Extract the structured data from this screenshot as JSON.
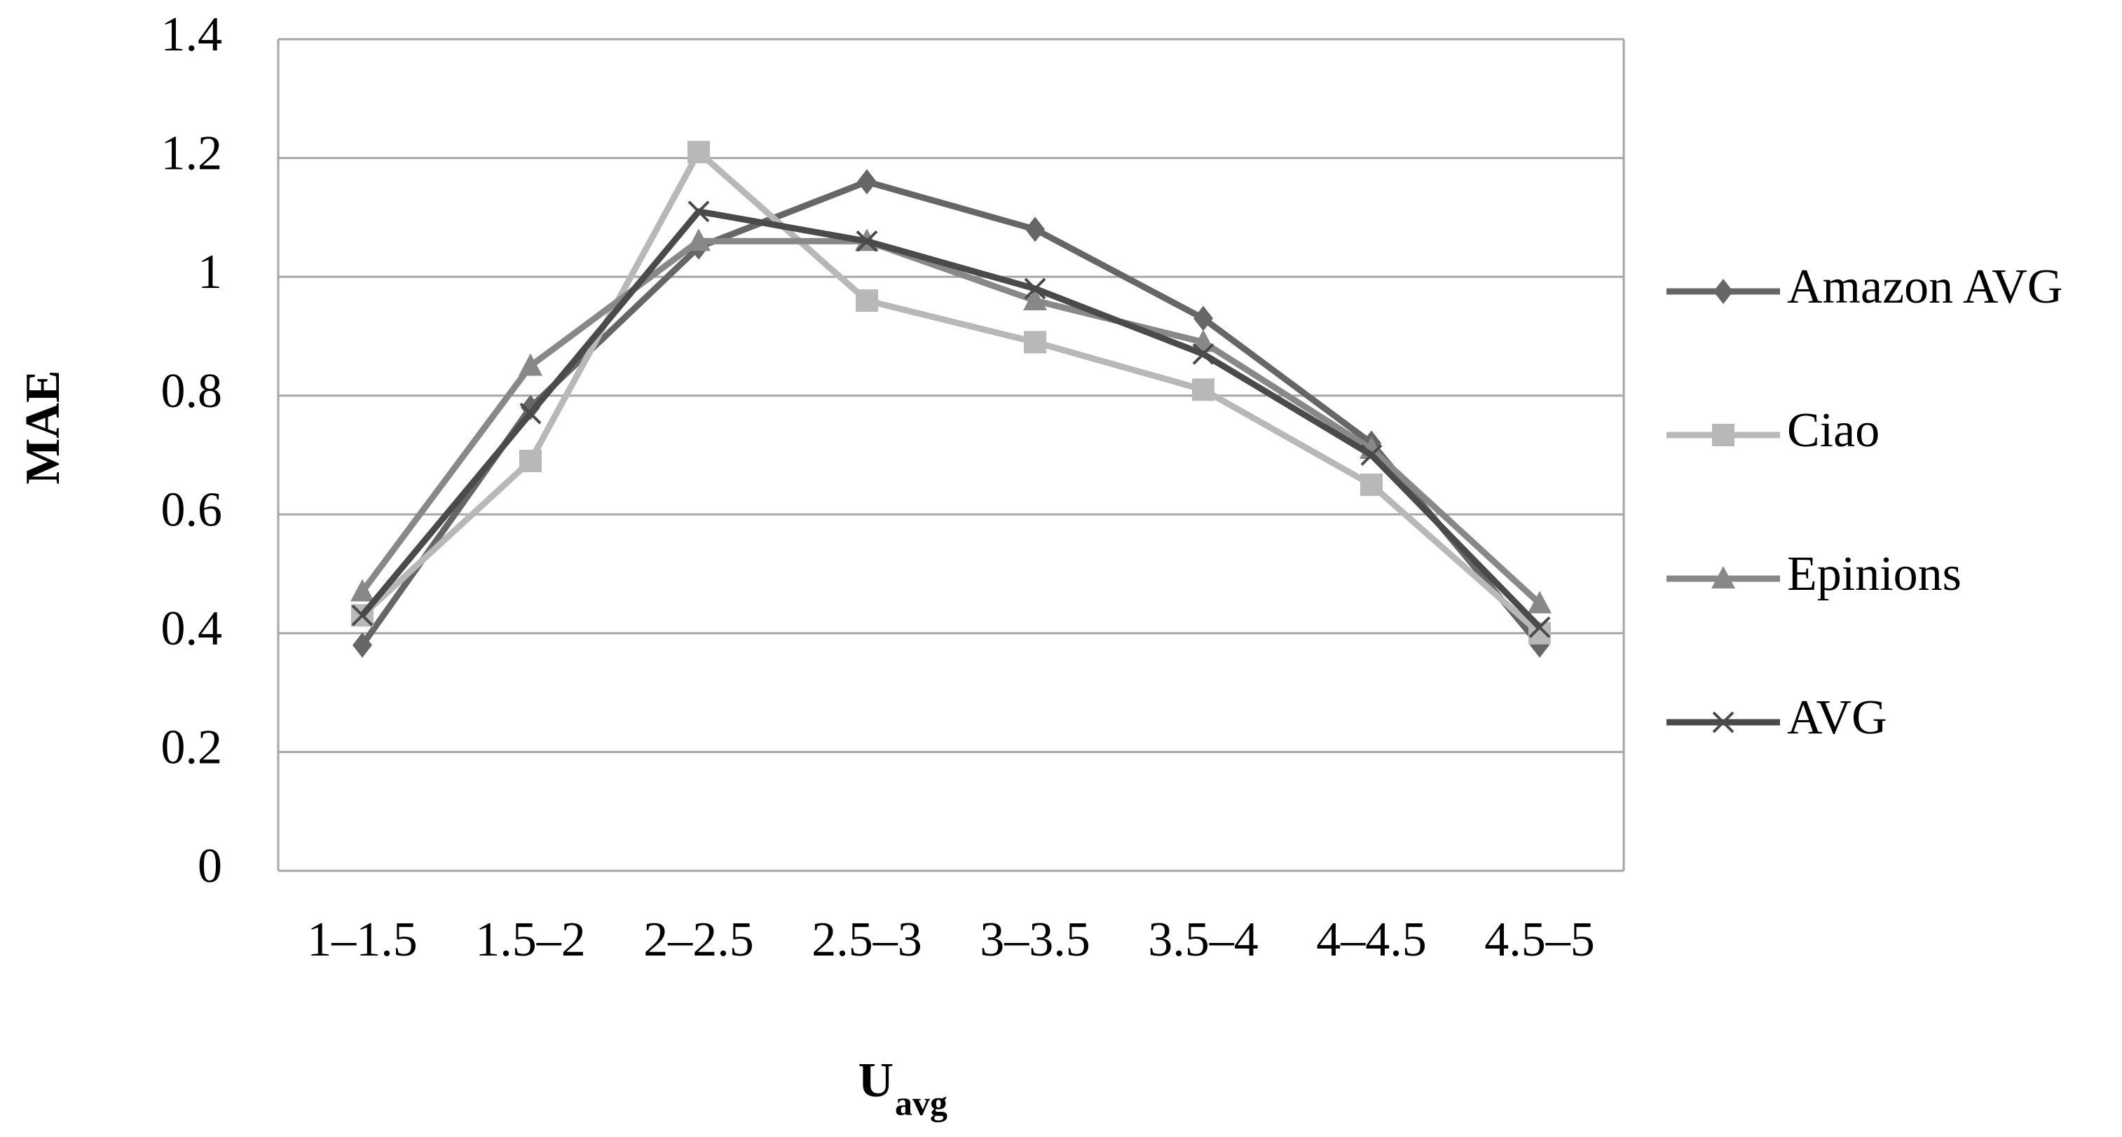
{
  "chart_data": {
    "type": "line",
    "ylabel": "MAE",
    "xlabel": "U",
    "xlabel_subscript": "avg",
    "categories": [
      "1–1.5",
      "1.5–2",
      "2–2.5",
      "2.5–3",
      "3–3.5",
      "3.5–4",
      "4–4.5",
      "4.5–5"
    ],
    "series": [
      {
        "name": "Amazon AVG",
        "color": "#666666",
        "marker": "diamond",
        "values": [
          0.38,
          0.78,
          1.05,
          1.16,
          1.08,
          0.93,
          0.72,
          0.38
        ]
      },
      {
        "name": "Ciao",
        "color": "#b8b8b8",
        "marker": "square",
        "values": [
          0.43,
          0.69,
          1.21,
          0.96,
          0.89,
          0.81,
          0.65,
          0.4
        ]
      },
      {
        "name": "Epinions",
        "color": "#888888",
        "marker": "triangle",
        "values": [
          0.47,
          0.85,
          1.06,
          1.06,
          0.96,
          0.89,
          0.71,
          0.45
        ]
      },
      {
        "name": "AVG",
        "color": "#4a4a4a",
        "marker": "x",
        "values": [
          0.43,
          0.77,
          1.11,
          1.06,
          0.98,
          0.87,
          0.7,
          0.41
        ]
      }
    ],
    "ylim": [
      0,
      1.4
    ],
    "yticks": [
      0,
      0.2,
      0.4,
      0.6,
      0.8,
      1,
      1.2,
      1.4
    ],
    "grid": true,
    "legend": "right"
  }
}
